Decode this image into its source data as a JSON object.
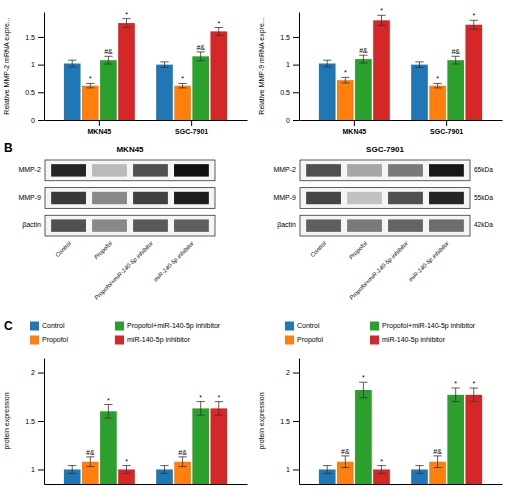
{
  "chart_data": [
    {
      "type": "bar",
      "categories": [
        "MKN45",
        "SGC-7901"
      ],
      "ylabel": "Relative MMP-2 mRNA expre...",
      "ylim": [
        0.0,
        1.95
      ],
      "yticks": [
        0,
        0.5,
        1,
        1.5
      ],
      "series": [
        {
          "values": [
            1.02,
            1.0
          ],
          "errors": [
            0.06,
            0.05
          ]
        },
        {
          "values": [
            0.62,
            0.62
          ],
          "errors": [
            0.04,
            0.04
          ],
          "annotation": "*"
        },
        {
          "values": [
            1.08,
            1.15
          ],
          "errors": [
            0.07,
            0.08
          ],
          "annotation": "#&"
        },
        {
          "values": [
            1.75,
            1.6
          ],
          "errors": [
            0.08,
            0.07
          ],
          "annotation": "*"
        }
      ]
    },
    {
      "type": "bar",
      "categories": [
        "MKN45",
        "SGC-7901"
      ],
      "ylabel": "Relative MMP-9 mRNA expre...",
      "ylim": [
        0.0,
        1.95
      ],
      "yticks": [
        0,
        0.5,
        1,
        1.5
      ],
      "series": [
        {
          "values": [
            1.02,
            1.0
          ],
          "errors": [
            0.06,
            0.05
          ]
        },
        {
          "values": [
            0.72,
            0.62
          ],
          "errors": [
            0.05,
            0.04
          ],
          "annotation": "*"
        },
        {
          "values": [
            1.1,
            1.08
          ],
          "errors": [
            0.07,
            0.07
          ],
          "annotation": "#&"
        },
        {
          "values": [
            1.8,
            1.72
          ],
          "errors": [
            0.09,
            0.08
          ],
          "annotation": "*"
        }
      ]
    },
    {
      "type": "heatmap",
      "panel": "B",
      "title": "MKN45",
      "categories": [
        "Control",
        "Propofol",
        "Propofol+miR-140-5p inhibitor",
        "miR-140-5p inhibitor"
      ],
      "rows": [
        "MMP-2",
        "MMP-9",
        "βactin"
      ],
      "cells": [
        [
          0.88,
          0.38,
          0.75,
          0.95
        ],
        [
          0.82,
          0.55,
          0.8,
          0.9
        ],
        [
          0.75,
          0.55,
          0.72,
          0.7
        ]
      ]
    },
    {
      "type": "heatmap",
      "title": "SGC-7901",
      "categories": [
        "Control",
        "Propofol",
        "Propofol+miR-140-5p inhibitor",
        "miR-140-5p inhibitor"
      ],
      "rows": [
        "MMP-2",
        "MMP-9",
        "βactin"
      ],
      "row_labels_right": [
        "65kDa",
        "55kDa",
        "42kDa"
      ],
      "cells": [
        [
          0.75,
          0.45,
          0.6,
          0.92
        ],
        [
          0.78,
          0.35,
          0.75,
          0.88
        ],
        [
          0.7,
          0.6,
          0.68,
          0.65
        ]
      ]
    },
    {
      "type": "bar",
      "panel": "C",
      "categories": [
        null,
        null
      ],
      "tick_labels": "y",
      "legend": "top",
      "ylabel": "protein expression",
      "ylim": [
        0.85,
        2.15
      ],
      "yticks": [
        1,
        1.5,
        2
      ],
      "series": [
        {
          "name": "Control",
          "values": [
            1.0,
            1.0
          ],
          "errors": [
            0.04,
            0.04
          ]
        },
        {
          "name": "Propofol",
          "values": [
            1.08,
            1.08
          ],
          "errors": [
            0.05,
            0.05
          ],
          "annotation": "#&"
        },
        {
          "name": "Propofol+miR-140-5p inhibitor",
          "values": [
            1.6,
            1.63
          ],
          "errors": [
            0.07,
            0.07
          ],
          "annotation": "*"
        },
        {
          "name": "miR-140-5p inhibitor",
          "values": [
            1.0,
            1.63
          ],
          "errors": [
            0.04,
            0.07
          ],
          "annotation": "*"
        }
      ]
    },
    {
      "type": "bar",
      "categories": [
        null,
        null
      ],
      "tick_labels": "y",
      "legend": "top",
      "ylabel": "protein expression",
      "ylim": [
        0.85,
        2.15
      ],
      "yticks": [
        1,
        1.5,
        2
      ],
      "series": [
        {
          "name": "Control",
          "values": [
            1.0,
            1.0
          ],
          "errors": [
            0.04,
            0.04
          ]
        },
        {
          "name": "Propofol",
          "values": [
            1.08,
            1.08
          ],
          "errors": [
            0.06,
            0.06
          ],
          "annotation": "#&"
        },
        {
          "name": "Propofol+miR-140-5p inhibitor",
          "values": [
            1.82,
            1.77
          ],
          "errors": [
            0.08,
            0.07
          ],
          "annotation": "*"
        },
        {
          "name": "miR-140-5p inhibitor",
          "values": [
            1.0,
            1.77
          ],
          "errors": [
            0.04,
            0.07
          ],
          "annotation": "*"
        }
      ]
    }
  ]
}
